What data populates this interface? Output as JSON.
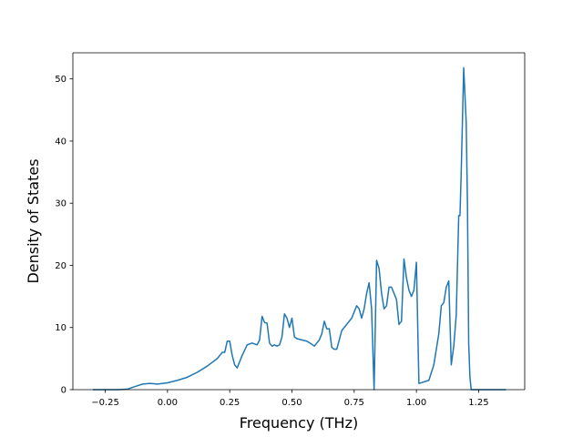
{
  "chart_data": {
    "type": "line",
    "title": "",
    "xlabel": "Frequency (THz)",
    "ylabel": "Density of States",
    "xlim": [
      -0.38,
      1.435
    ],
    "ylim": [
      0,
      54.2
    ],
    "xticks": [
      -0.25,
      0.0,
      0.25,
      0.5,
      0.75,
      1.0,
      1.25
    ],
    "xtick_labels": [
      "−0.25",
      "0.00",
      "0.25",
      "0.50",
      "0.75",
      "1.00",
      "1.25"
    ],
    "yticks": [
      0,
      10,
      20,
      30,
      40,
      50
    ],
    "ytick_labels": [
      "0",
      "10",
      "20",
      "30",
      "40",
      "50"
    ],
    "grid": false,
    "line_color": "#1f77b4",
    "series": [
      {
        "x": [
          -0.3,
          -0.2,
          -0.16,
          -0.13,
          -0.1,
          -0.07,
          -0.04,
          0.0,
          0.04,
          0.08,
          0.12,
          0.16,
          0.2,
          0.22,
          0.23,
          0.24,
          0.25,
          0.26,
          0.27,
          0.28,
          0.29,
          0.3,
          0.32,
          0.34,
          0.36,
          0.37,
          0.38,
          0.39,
          0.4,
          0.41,
          0.42,
          0.43,
          0.44,
          0.45,
          0.46,
          0.47,
          0.48,
          0.49,
          0.5,
          0.51,
          0.52,
          0.54,
          0.56,
          0.58,
          0.59,
          0.6,
          0.61,
          0.62,
          0.63,
          0.64,
          0.65,
          0.66,
          0.67,
          0.68,
          0.7,
          0.72,
          0.74,
          0.75,
          0.76,
          0.77,
          0.78,
          0.79,
          0.8,
          0.81,
          0.82,
          0.83,
          0.84,
          0.85,
          0.86,
          0.87,
          0.88,
          0.89,
          0.9,
          0.91,
          0.92,
          0.93,
          0.94,
          0.95,
          0.96,
          0.97,
          0.98,
          0.99,
          1.0,
          1.01,
          1.05,
          1.07,
          1.09,
          1.1,
          1.11,
          1.12,
          1.13,
          1.14,
          1.15,
          1.16,
          1.17,
          1.175,
          1.18,
          1.19,
          1.2,
          1.205,
          1.21,
          1.215,
          1.22,
          1.23,
          1.26,
          1.36
        ],
        "y": [
          0,
          0,
          0.1,
          0.5,
          0.9,
          1.0,
          0.9,
          1.1,
          1.5,
          2.0,
          2.8,
          3.8,
          5.0,
          6.0,
          6.0,
          7.8,
          7.8,
          5.5,
          4.0,
          3.5,
          4.5,
          5.5,
          7.2,
          7.5,
          7.2,
          8.0,
          11.8,
          10.8,
          10.7,
          7.5,
          7.0,
          7.2,
          7.0,
          7.2,
          8.5,
          12.2,
          11.5,
          10.0,
          11.5,
          8.5,
          8.2,
          8.0,
          7.8,
          7.3,
          7.0,
          7.5,
          8.0,
          9.0,
          11.0,
          9.8,
          9.8,
          6.8,
          6.5,
          6.5,
          9.5,
          10.5,
          11.5,
          12.5,
          13.5,
          13.0,
          11.5,
          13.0,
          15.5,
          17.2,
          13.0,
          0,
          20.8,
          19.5,
          15.5,
          13.0,
          13.5,
          16.5,
          16.5,
          15.5,
          14.5,
          10.5,
          11.0,
          21.0,
          18.0,
          16.0,
          15.0,
          16.0,
          20.5,
          1.0,
          1.5,
          4.0,
          9.0,
          13.5,
          14.0,
          16.5,
          17.5,
          4.0,
          7.0,
          12.0,
          28.0,
          28.0,
          35.0,
          51.8,
          43.0,
          30.0,
          7.5,
          2.0,
          0,
          0,
          0,
          0
        ]
      }
    ]
  }
}
